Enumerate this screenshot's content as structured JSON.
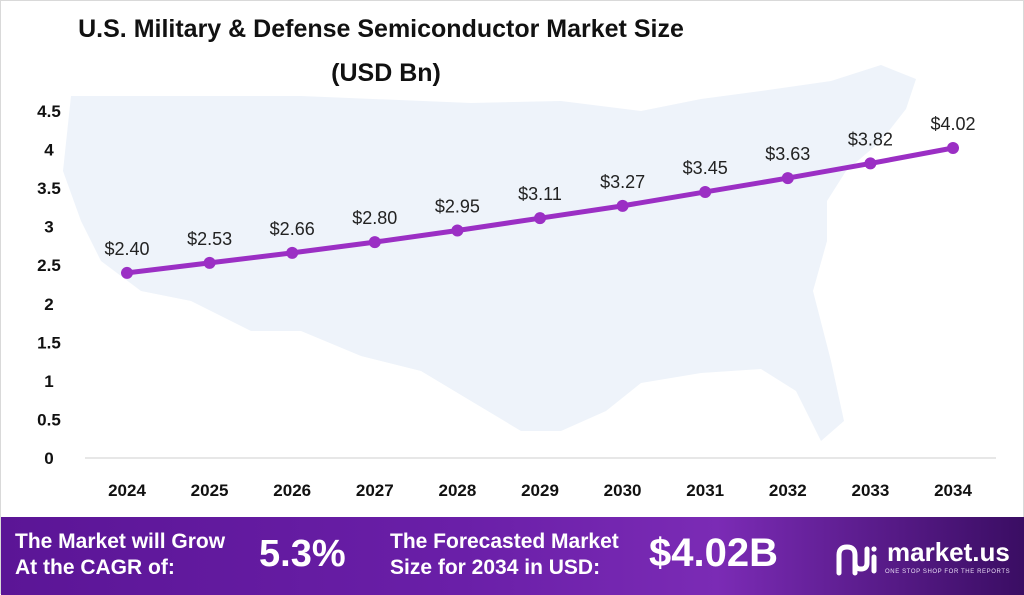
{
  "header": {
    "title_line1": "U.S. Military & Defense Semiconductor Market Size",
    "title_line2": "(USD Bn)"
  },
  "chart_data": {
    "type": "line",
    "title": "U.S. Military & Defense Semiconductor Market Size (USD Bn)",
    "categories": [
      "2024",
      "2025",
      "2026",
      "2027",
      "2028",
      "2029",
      "2030",
      "2031",
      "2032",
      "2033",
      "2034"
    ],
    "values": [
      2.4,
      2.53,
      2.66,
      2.8,
      2.95,
      3.11,
      3.27,
      3.45,
      3.63,
      3.82,
      4.02
    ],
    "data_labels": [
      "$2.40",
      "$2.53",
      "$2.66",
      "$2.80",
      "$2.95",
      "$3.11",
      "$3.27",
      "$3.45",
      "$3.63",
      "$3.82",
      "$4.02"
    ],
    "yticks": [
      "0",
      "0.5",
      "1",
      "1.5",
      "2",
      "2.5",
      "3",
      "3.5",
      "4",
      "4.5"
    ],
    "ylim": [
      0,
      4.5
    ],
    "xlabel": "",
    "ylabel": "",
    "grid": false,
    "line_color": "#9b2fc4",
    "background_map": "usa-map-silhouette"
  },
  "footer": {
    "cagr_text_line1": "The Market will Grow",
    "cagr_text_line2": "At the CAGR of:",
    "cagr_value": "5.3%",
    "forecast_text_line1": "The Forecasted Market",
    "forecast_text_line2": "Size for 2034 in USD:",
    "forecast_value": "$4.02B",
    "brand_name": "market.us",
    "brand_tagline": "ONE STOP SHOP FOR THE REPORTS",
    "brand_icon": "market-us-logo-icon"
  }
}
